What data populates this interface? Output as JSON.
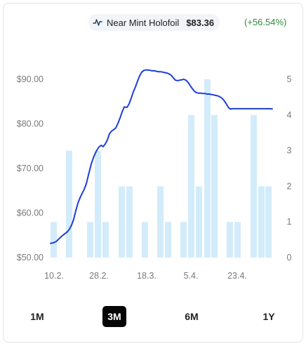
{
  "header": {
    "variant": "Near Mint Holofoil",
    "price": "$83.36",
    "change": "(+56.54%)",
    "icon": "line-chart-icon",
    "change_color": "#2e8b3e"
  },
  "periods": {
    "items": [
      "1M",
      "3M",
      "6M",
      "1Y"
    ],
    "active": "3M"
  },
  "chart_data": {
    "type": "line",
    "series": [
      {
        "name": "",
        "axis": "left",
        "color": "#1d3fd6",
        "x": [
          0,
          4,
          8,
          12,
          16,
          20,
          24,
          27,
          30,
          33,
          36,
          39,
          42,
          45,
          48,
          51,
          54,
          58,
          62,
          66,
          69,
          72,
          75,
          78,
          81,
          84,
          87,
          90,
          93,
          96,
          99,
          102,
          105,
          109,
          112,
          115,
          118,
          121,
          124,
          127,
          130,
          133,
          136,
          139,
          142,
          145,
          148,
          151,
          154,
          157,
          160,
          163,
          166,
          169,
          172,
          175,
          178,
          181,
          184,
          187,
          190,
          193,
          196,
          199,
          202,
          205,
          208,
          211,
          214,
          217,
          220,
          223,
          226,
          229,
          232,
          235,
          238,
          241,
          244,
          247,
          250,
          253,
          256,
          259,
          262,
          265,
          268,
          271,
          274,
          277,
          280,
          283,
          286,
          289,
          292,
          295,
          298,
          301,
          304,
          307,
          310,
          313,
          316
        ],
        "y": [
          53.2,
          53.3,
          53.6,
          54.2,
          54.8,
          55.3,
          55.8,
          56.4,
          57.3,
          58.6,
          60.5,
          62.2,
          63.4,
          64.4,
          65.3,
          66.6,
          68.5,
          71.0,
          72.8,
          74.1,
          74.8,
          75.2,
          74.9,
          75.5,
          76.4,
          77.8,
          78.4,
          78.7,
          79.1,
          80.1,
          81.3,
          82.7,
          83.8,
          83.7,
          84.5,
          85.8,
          87.2,
          88.3,
          89.6,
          90.8,
          91.6,
          92.0,
          92.1,
          92.1,
          92.0,
          91.9,
          91.9,
          91.8,
          91.7,
          91.7,
          91.6,
          91.5,
          91.4,
          91.2,
          90.9,
          90.3,
          89.8,
          89.7,
          89.8,
          89.9,
          90.0,
          89.8,
          89.3,
          88.6,
          87.9,
          87.3,
          87.0,
          86.9,
          86.9,
          86.8,
          86.8,
          86.7,
          86.7,
          86.6,
          86.5,
          86.4,
          86.3,
          86.1,
          85.8,
          85.3,
          84.6,
          83.8,
          83.3,
          83.4,
          83.4,
          83.4,
          83.4,
          83.4,
          83.4,
          83.4,
          83.4,
          83.4,
          83.4,
          83.4,
          83.4,
          83.4,
          83.4,
          83.4,
          83.4,
          83.4,
          83.4,
          83.4,
          83.36
        ]
      },
      {
        "name": "",
        "axis": "right",
        "type": "bar",
        "color": "#d3ecfb",
        "x": [
          0,
          22,
          52,
          63,
          74,
          97,
          108,
          130,
          152,
          163,
          185,
          196,
          207,
          219,
          229,
          251,
          262,
          285,
          296,
          306
        ],
        "values": [
          1,
          3,
          1,
          3,
          1,
          2,
          2,
          1,
          2,
          1,
          1,
          4,
          2,
          5,
          4,
          1,
          1,
          4,
          2,
          2
        ]
      }
    ],
    "x_ticks": [
      "10.2.",
      "28.2.",
      "18.3.",
      "5.4.",
      "23.4."
    ],
    "y_left_ticks": [
      "$50.00",
      "$60.00",
      "$70.00",
      "$80.00",
      "$90.00"
    ],
    "y_right_ticks": [
      "0",
      "1",
      "2",
      "3",
      "4",
      "5"
    ],
    "ylim_left": [
      50,
      90
    ],
    "ylim_right": [
      0,
      5
    ],
    "grid": false,
    "legend": "none"
  }
}
